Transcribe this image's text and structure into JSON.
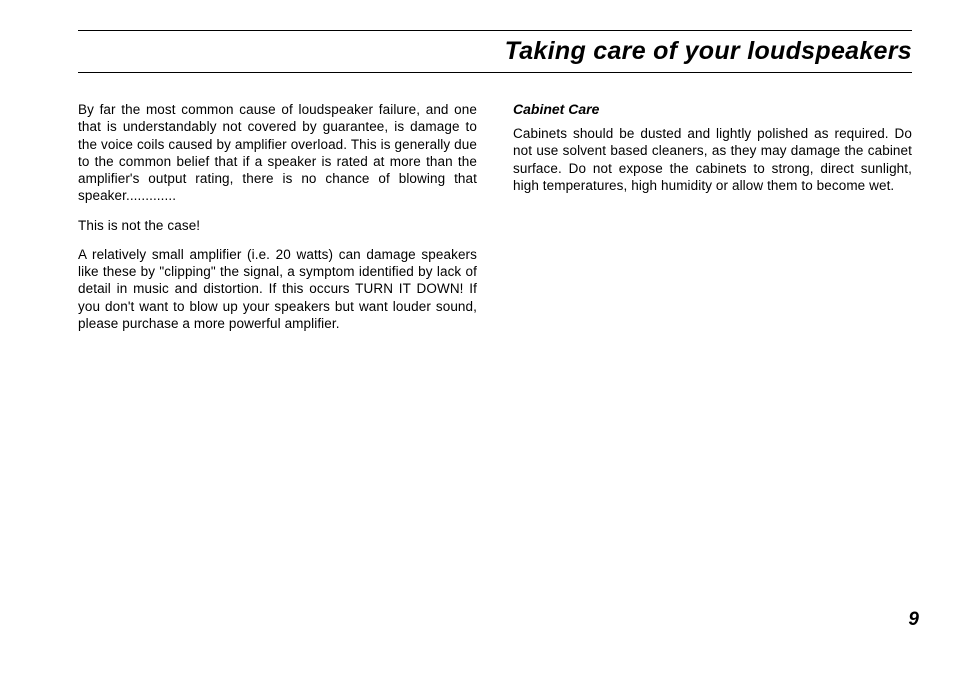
{
  "header": {
    "title": "Taking care of your loudspeakers"
  },
  "left_column": {
    "paragraphs": [
      "By far the most common cause of loudspeaker failure, and one that is understandably not covered by guarantee, is damage to the voice coils caused by amplifier overload. This is generally due to the common belief that if a speaker is rated at more than the amplifier's output rating, there is no chance of blowing that speaker.............",
      "This is not the case!",
      "A relatively small amplifier (i.e. 20 watts) can damage speakers like these by \"clipping\" the signal, a symptom identified by lack of detail in music and distortion.  If this occurs TURN IT DOWN! If you don't want to blow up your speakers but want louder sound, please purchase a more powerful amplifier."
    ]
  },
  "right_column": {
    "heading": "Cabinet Care",
    "paragraphs": [
      "Cabinets should be dusted and lightly polished as required. Do not use solvent based cleaners, as they may damage the cabinet surface.  Do not expose the cabinets to strong, direct sunlight, high temperatures, high humidity or allow them to become wet."
    ]
  },
  "page_number": "9"
}
